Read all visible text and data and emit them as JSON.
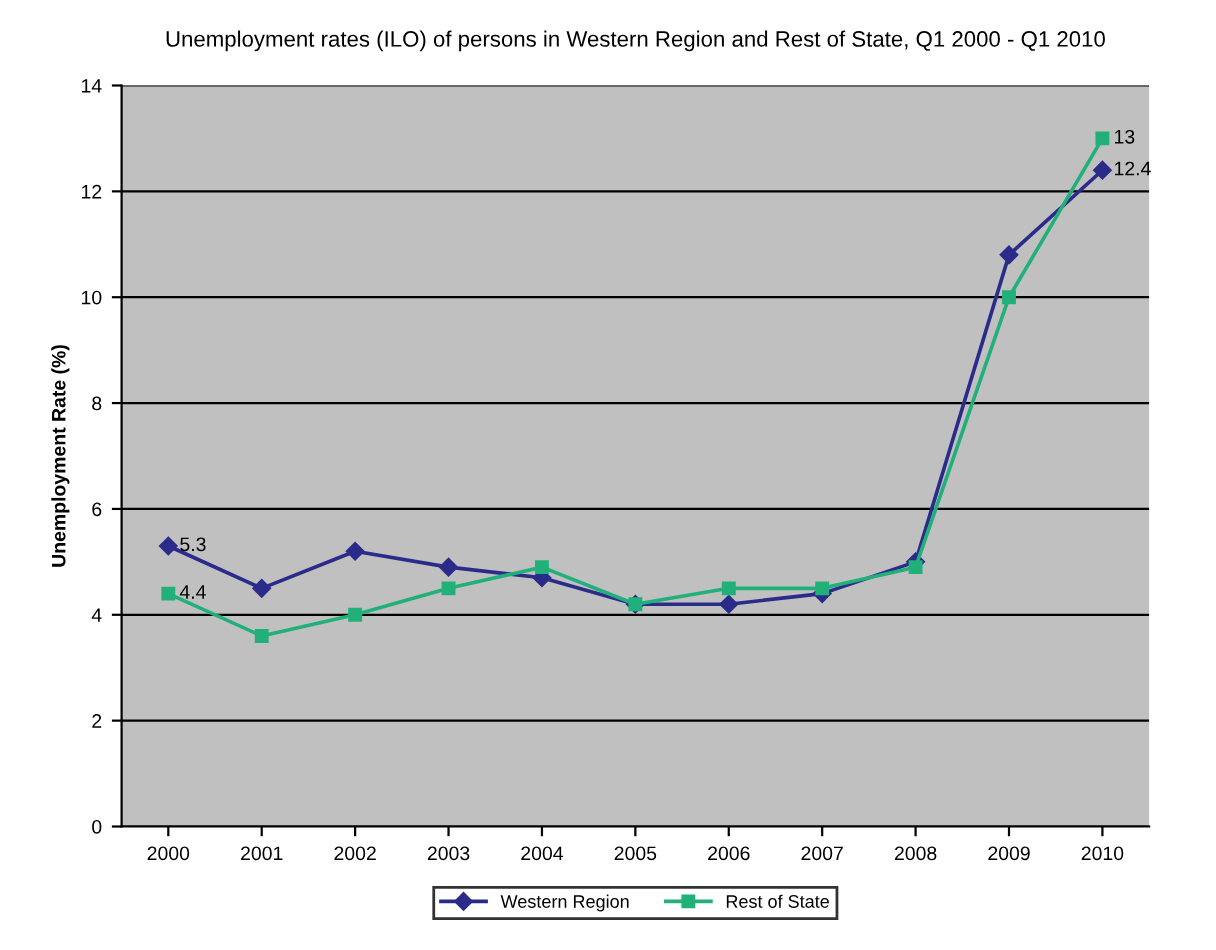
{
  "chart_data": {
    "type": "line",
    "title": "Unemployment rates (ILO) of persons in Western Region and Rest of State, Q1 2000 - Q1 2010",
    "ylabel": "Unemployment Rate (%)",
    "categories": [
      "2000",
      "2001",
      "2002",
      "2003",
      "2004",
      "2005",
      "2006",
      "2007",
      "2008",
      "2009",
      "2010"
    ],
    "series": [
      {
        "name": "Western Region",
        "color": "#2b2b8a",
        "marker": "diamond",
        "values": [
          5.3,
          4.5,
          5.2,
          4.9,
          4.7,
          4.2,
          4.2,
          4.4,
          5.0,
          10.8,
          12.4
        ],
        "value_labels": [
          "5.3",
          null,
          null,
          null,
          null,
          null,
          null,
          null,
          null,
          null,
          "12.4"
        ]
      },
      {
        "name": "Rest of State",
        "color": "#22b07a",
        "marker": "square",
        "values": [
          4.4,
          3.6,
          4.0,
          4.5,
          4.9,
          4.2,
          4.5,
          4.5,
          4.9,
          10.0,
          13
        ],
        "value_labels": [
          "4.4",
          null,
          null,
          null,
          null,
          null,
          null,
          null,
          null,
          null,
          "13"
        ]
      }
    ],
    "ylim": [
      0,
      14
    ],
    "yticks": [
      0,
      2,
      4,
      6,
      8,
      10,
      12,
      14
    ],
    "grid": "y",
    "legend": "bottom"
  }
}
